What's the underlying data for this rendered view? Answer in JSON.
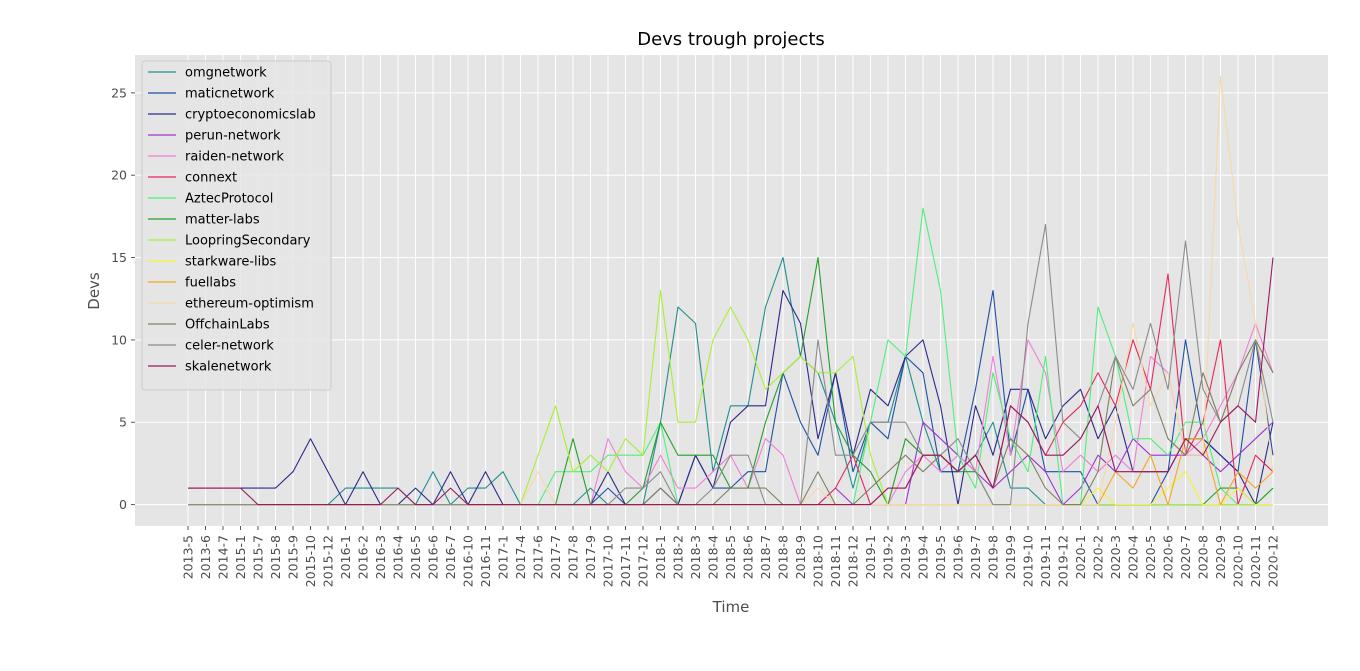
{
  "chart_data": {
    "type": "line",
    "title": "Devs trough projects",
    "xlabel": "Time",
    "ylabel": "Devs",
    "ylim": [
      -1.3,
      27.3
    ],
    "yticks": [
      0,
      5,
      10,
      15,
      20,
      25
    ],
    "grid": true,
    "legend_position": "top-left",
    "categories": [
      "2013-5",
      "2013-6",
      "2014-7",
      "2015-1",
      "2015-7",
      "2015-8",
      "2015-9",
      "2015-10",
      "2015-12",
      "2016-1",
      "2016-2",
      "2016-3",
      "2016-4",
      "2016-5",
      "2016-6",
      "2016-7",
      "2016-10",
      "2016-11",
      "2017-1",
      "2017-4",
      "2017-6",
      "2017-7",
      "2017-8",
      "2017-9",
      "2017-10",
      "2017-11",
      "2017-12",
      "2018-1",
      "2018-2",
      "2018-3",
      "2018-4",
      "2018-5",
      "2018-6",
      "2018-7",
      "2018-8",
      "2018-9",
      "2018-10",
      "2018-11",
      "2018-12",
      "2019-1",
      "2019-2",
      "2019-3",
      "2019-4",
      "2019-5",
      "2019-6",
      "2019-7",
      "2019-8",
      "2019-9",
      "2019-10",
      "2019-11",
      "2019-12",
      "2020-1",
      "2020-2",
      "2020-3",
      "2020-4",
      "2020-5",
      "2020-6",
      "2020-7",
      "2020-8",
      "2020-9",
      "2020-10",
      "2020-11",
      "2020-12"
    ],
    "series": [
      {
        "name": "omgnetwork",
        "color": "#1f8f8f",
        "values": [
          0,
          0,
          0,
          0,
          0,
          0,
          0,
          0,
          0,
          1,
          1,
          1,
          1,
          0,
          2,
          0,
          1,
          1,
          2,
          0,
          0,
          0,
          0,
          1,
          0,
          0,
          0,
          5,
          12,
          11,
          2,
          6,
          6,
          12,
          15,
          9,
          8,
          5,
          1,
          5,
          5,
          9,
          5,
          2,
          2,
          3,
          5,
          1,
          1,
          0,
          0,
          0,
          0,
          0,
          0,
          0,
          0,
          0,
          0,
          0,
          0,
          0,
          0
        ]
      },
      {
        "name": "maticnetwork",
        "color": "#1f4fa8",
        "values": [
          0,
          0,
          0,
          0,
          0,
          0,
          0,
          0,
          0,
          0,
          0,
          0,
          0,
          0,
          0,
          0,
          0,
          0,
          0,
          0,
          0,
          0,
          0,
          0,
          1,
          0,
          0,
          1,
          0,
          3,
          1,
          1,
          2,
          2,
          8,
          5,
          3,
          8,
          2,
          5,
          4,
          9,
          8,
          2,
          2,
          7,
          13,
          3,
          7,
          2,
          2,
          2,
          0,
          0,
          0,
          0,
          2,
          10,
          4,
          3,
          2,
          10,
          3
        ]
      },
      {
        "name": "cryptoeconomicslab",
        "color": "#2a2a8c",
        "values": [
          1,
          1,
          1,
          1,
          1,
          1,
          2,
          4,
          2,
          0,
          2,
          0,
          0,
          1,
          0,
          2,
          0,
          2,
          0,
          0,
          0,
          0,
          0,
          0,
          2,
          0,
          0,
          0,
          0,
          3,
          1,
          5,
          6,
          6,
          13,
          11,
          4,
          8,
          3,
          7,
          6,
          9,
          10,
          6,
          0,
          6,
          3,
          7,
          7,
          4,
          6,
          7,
          4,
          6,
          2,
          2,
          2,
          4,
          4,
          3,
          2,
          0,
          5
        ]
      },
      {
        "name": "perun-network",
        "color": "#a030d8",
        "values": [
          0,
          0,
          0,
          0,
          0,
          0,
          0,
          0,
          0,
          0,
          0,
          0,
          0,
          0,
          0,
          0,
          0,
          0,
          0,
          0,
          0,
          0,
          0,
          0,
          0,
          0,
          0,
          0,
          0,
          0,
          0,
          0,
          0,
          0,
          0,
          0,
          0,
          1,
          0,
          0,
          0,
          0,
          5,
          4,
          3,
          2,
          1,
          2,
          3,
          2,
          0,
          1,
          3,
          2,
          4,
          3,
          3,
          3,
          3,
          2,
          3,
          4,
          5
        ]
      },
      {
        "name": "raiden-network",
        "color": "#f27ed6",
        "values": [
          0,
          0,
          0,
          0,
          0,
          0,
          0,
          0,
          0,
          0,
          0,
          0,
          0,
          0,
          0,
          0,
          0,
          0,
          0,
          0,
          0,
          0,
          0,
          0,
          4,
          2,
          1,
          3,
          1,
          1,
          2,
          3,
          1,
          4,
          3,
          0,
          0,
          0,
          0,
          0,
          0,
          2,
          3,
          2,
          3,
          2,
          9,
          3,
          10,
          8,
          2,
          3,
          2,
          3,
          2,
          9,
          8,
          3,
          4,
          6,
          8,
          11,
          8
        ]
      },
      {
        "name": "connext",
        "color": "#e8285a",
        "values": [
          0,
          0,
          0,
          0,
          0,
          0,
          0,
          0,
          0,
          0,
          0,
          0,
          0,
          0,
          0,
          0,
          0,
          0,
          0,
          0,
          0,
          0,
          0,
          0,
          0,
          0,
          0,
          0,
          0,
          0,
          0,
          0,
          0,
          0,
          0,
          0,
          0,
          1,
          3,
          0,
          1,
          1,
          3,
          3,
          2,
          3,
          1,
          6,
          5,
          3,
          5,
          6,
          8,
          6,
          10,
          7,
          14,
          3,
          5,
          10,
          0,
          3,
          2
        ]
      },
      {
        "name": "AztecProtocol",
        "color": "#4df07a",
        "values": [
          0,
          0,
          0,
          0,
          0,
          0,
          0,
          0,
          0,
          0,
          0,
          0,
          0,
          0,
          0,
          0,
          0,
          0,
          0,
          0,
          0,
          2,
          2,
          2,
          3,
          3,
          3,
          5,
          0,
          0,
          0,
          0,
          0,
          0,
          0,
          0,
          0,
          0,
          0,
          5,
          10,
          9,
          18,
          13,
          3,
          1,
          8,
          4,
          2,
          9,
          0,
          0,
          12,
          9,
          4,
          4,
          3,
          5,
          5,
          1,
          0,
          0,
          1
        ]
      },
      {
        "name": "matter-labs",
        "color": "#22a02a",
        "values": [
          0,
          0,
          0,
          0,
          0,
          0,
          0,
          0,
          0,
          0,
          0,
          0,
          0,
          0,
          0,
          0,
          0,
          0,
          0,
          0,
          0,
          0,
          4,
          0,
          0,
          0,
          1,
          5,
          3,
          3,
          3,
          1,
          1,
          5,
          8,
          9,
          15,
          5,
          3,
          2,
          0,
          4,
          3,
          3,
          2,
          2,
          0,
          0,
          0,
          0,
          0,
          0,
          0,
          0,
          0,
          0,
          0,
          0,
          0,
          1,
          1,
          0,
          1
        ]
      },
      {
        "name": "LoopringSecondary",
        "color": "#a8f032",
        "values": [
          0,
          0,
          0,
          0,
          0,
          0,
          0,
          0,
          0,
          0,
          0,
          0,
          0,
          0,
          0,
          0,
          0,
          0,
          0,
          0,
          3,
          6,
          2,
          3,
          2,
          4,
          3,
          13,
          5,
          5,
          10,
          12,
          10,
          7,
          8,
          9,
          8,
          8,
          9,
          3,
          0,
          0,
          0,
          0,
          0,
          0,
          0,
          0,
          0,
          0,
          0,
          0,
          0,
          0,
          0,
          0,
          0,
          0,
          0,
          0,
          0,
          0,
          0
        ]
      },
      {
        "name": "starkware-libs",
        "color": "#f5f532",
        "values": [
          0,
          0,
          0,
          0,
          0,
          0,
          0,
          0,
          0,
          0,
          0,
          0,
          0,
          0,
          0,
          0,
          0,
          0,
          0,
          0,
          0,
          0,
          0,
          0,
          0,
          0,
          0,
          0,
          0,
          0,
          0,
          0,
          0,
          0,
          0,
          0,
          0,
          0,
          0,
          0,
          0,
          0,
          0,
          0,
          0,
          0,
          0,
          0,
          0,
          0,
          0,
          0,
          1,
          0,
          0,
          0,
          1,
          2,
          0,
          0,
          1,
          0,
          0
        ]
      },
      {
        "name": "fuellabs",
        "color": "#f5a623",
        "values": [
          0,
          0,
          0,
          0,
          0,
          0,
          0,
          0,
          0,
          0,
          0,
          0,
          0,
          0,
          0,
          0,
          0,
          0,
          0,
          0,
          0,
          0,
          0,
          0,
          0,
          0,
          0,
          0,
          0,
          0,
          0,
          0,
          0,
          0,
          0,
          0,
          0,
          0,
          0,
          0,
          0,
          0,
          0,
          0,
          0,
          0,
          0,
          0,
          0,
          0,
          0,
          0,
          0,
          2,
          1,
          3,
          0,
          4,
          4,
          0,
          2,
          1,
          2
        ]
      },
      {
        "name": "ethereum-optimism",
        "color": "#f8d8a8",
        "values": [
          0,
          0,
          0,
          0,
          0,
          0,
          0,
          0,
          0,
          0,
          0,
          0,
          0,
          0,
          0,
          0,
          0,
          0,
          0,
          0,
          2,
          0,
          0,
          0,
          0,
          0,
          0,
          0,
          0,
          0,
          0,
          0,
          0,
          0,
          0,
          0,
          1,
          0,
          0,
          0,
          0,
          0,
          0,
          0,
          0,
          0,
          0,
          0,
          0,
          0,
          0,
          0,
          0,
          5,
          11,
          6,
          8,
          3,
          3,
          26,
          17,
          11,
          2
        ]
      },
      {
        "name": "OffchainLabs",
        "color": "#808060",
        "values": [
          0,
          0,
          0,
          0,
          0,
          0,
          0,
          0,
          0,
          0,
          0,
          0,
          0,
          0,
          0,
          0,
          0,
          0,
          0,
          0,
          0,
          0,
          0,
          0,
          0,
          0,
          0,
          1,
          0,
          0,
          0,
          1,
          1,
          1,
          0,
          0,
          2,
          0,
          0,
          1,
          2,
          3,
          2,
          3,
          2,
          3,
          1,
          4,
          3,
          1,
          0,
          0,
          2,
          9,
          6,
          7,
          4,
          3,
          8,
          5,
          8,
          10,
          8
        ]
      },
      {
        "name": "celer-network",
        "color": "#8c8c8c",
        "values": [
          0,
          0,
          0,
          0,
          0,
          0,
          0,
          0,
          0,
          0,
          0,
          0,
          0,
          0,
          0,
          0,
          0,
          0,
          0,
          0,
          0,
          0,
          0,
          0,
          0,
          1,
          1,
          2,
          0,
          0,
          1,
          3,
          3,
          0,
          0,
          0,
          10,
          3,
          3,
          5,
          5,
          5,
          3,
          3,
          4,
          2,
          0,
          0,
          11,
          17,
          5,
          4,
          6,
          9,
          7,
          11,
          7,
          16,
          7,
          5,
          6,
          10,
          5
        ]
      },
      {
        "name": "skalenetwork",
        "color": "#9c1a5a",
        "values": [
          1,
          1,
          1,
          1,
          0,
          0,
          0,
          0,
          0,
          0,
          0,
          0,
          1,
          0,
          0,
          1,
          0,
          0,
          0,
          0,
          0,
          0,
          0,
          0,
          0,
          0,
          0,
          0,
          0,
          0,
          0,
          0,
          0,
          0,
          0,
          0,
          0,
          0,
          0,
          0,
          1,
          1,
          3,
          3,
          2,
          3,
          1,
          6,
          5,
          3,
          3,
          4,
          6,
          2,
          2,
          2,
          2,
          4,
          3,
          5,
          6,
          5,
          15
        ]
      }
    ]
  }
}
